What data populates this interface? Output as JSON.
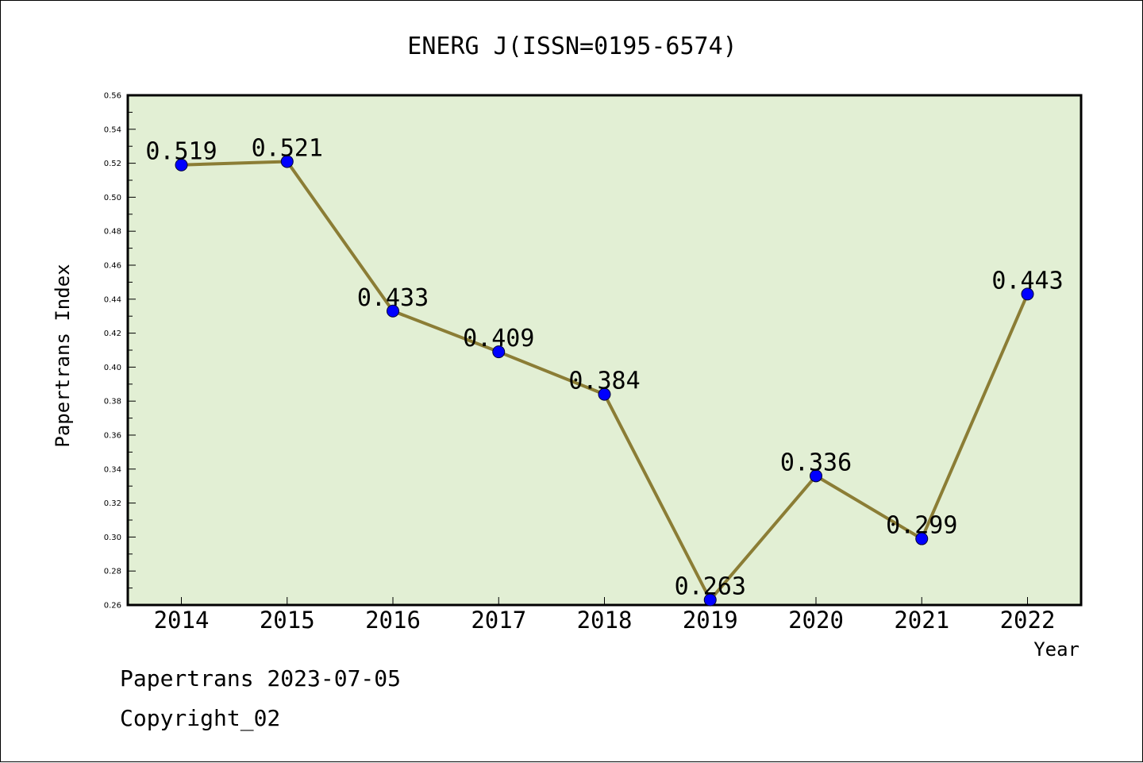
{
  "chart_data": {
    "type": "line",
    "title": "ENERG J(ISSN=0195-6574)",
    "xlabel": "Year",
    "ylabel": "Papertrans Index",
    "categories": [
      "2014",
      "2015",
      "2016",
      "2017",
      "2018",
      "2019",
      "2020",
      "2021",
      "2022"
    ],
    "series": [
      {
        "values": [
          0.519,
          0.521,
          0.433,
          0.409,
          0.384,
          0.263,
          0.336,
          0.299,
          0.443
        ],
        "labels": [
          "0.519",
          "0.521",
          "0.433",
          "0.409",
          "0.384",
          "0.263",
          "0.336",
          "0.299",
          "0.443"
        ]
      }
    ],
    "ylim": [
      0.26,
      0.56
    ],
    "yticks": [
      "0.26",
      "0.28",
      "0.30",
      "0.32",
      "0.34",
      "0.36",
      "0.38",
      "0.40",
      "0.42",
      "0.44",
      "0.46",
      "0.48",
      "0.50",
      "0.52",
      "0.54",
      "0.56"
    ],
    "grid": false,
    "colors": {
      "plot_background": "#e2efd4",
      "line": "#8b7d35",
      "marker": "#0000ff"
    }
  },
  "footer": {
    "line1": "Papertrans 2023-07-05",
    "line2": "Copyright_02"
  }
}
